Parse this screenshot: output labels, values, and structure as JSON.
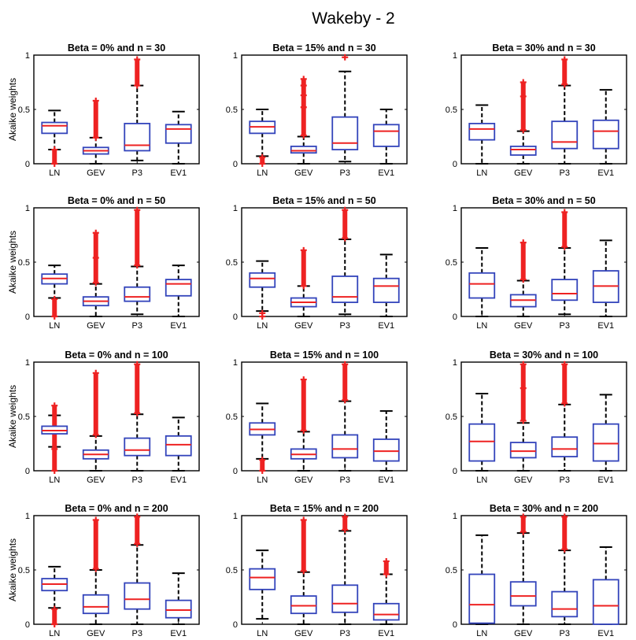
{
  "title": "Wakeby - 2",
  "ylabel": "Akaike weights",
  "colors": {
    "box": "#3344bb",
    "median": "#ee2222",
    "outlier": "#ee2222",
    "whisker": "#000000",
    "axis": "#000000"
  },
  "chart_data": {
    "type": "box",
    "title": "Wakeby - 2",
    "ylabel": "Akaike weights",
    "ylim": [
      0,
      1
    ],
    "yticks": [
      0,
      0.5,
      1
    ],
    "ytick_labels": [
      "0",
      "0.5",
      "1"
    ],
    "categories": [
      "LN",
      "GEV",
      "P3",
      "EV1"
    ],
    "panels": [
      {
        "title": "Beta = 0% and n = 30",
        "boxes": [
          {
            "q1": 0.28,
            "median": 0.35,
            "q3": 0.38,
            "wlo": 0.13,
            "whi": 0.49,
            "outliers": [
              0.0,
              0.13
            ]
          },
          {
            "q1": 0.09,
            "median": 0.12,
            "q3": 0.15,
            "wlo": 0.0,
            "whi": 0.24,
            "outliers": [
              0.24,
              0.58
            ]
          },
          {
            "q1": 0.12,
            "median": 0.17,
            "q3": 0.37,
            "wlo": 0.03,
            "whi": 0.72,
            "outliers": [
              0.72,
              0.96
            ]
          },
          {
            "q1": 0.19,
            "median": 0.32,
            "q3": 0.36,
            "wlo": 0.0,
            "whi": 0.48,
            "outliers": []
          }
        ]
      },
      {
        "title": "Beta = 15% and n = 30",
        "boxes": [
          {
            "q1": 0.28,
            "median": 0.34,
            "q3": 0.39,
            "wlo": 0.07,
            "whi": 0.5,
            "outliers": [
              0.0,
              0.06
            ]
          },
          {
            "q1": 0.1,
            "median": 0.12,
            "q3": 0.16,
            "wlo": 0.0,
            "whi": 0.25,
            "outliers": [
              0.26,
              0.52,
              0.63,
              0.72,
              0.78
            ]
          },
          {
            "q1": 0.13,
            "median": 0.19,
            "q3": 0.43,
            "wlo": 0.02,
            "whi": 0.85,
            "outliers": [
              0.98
            ]
          },
          {
            "q1": 0.16,
            "median": 0.3,
            "q3": 0.36,
            "wlo": 0.0,
            "whi": 0.5,
            "outliers": []
          }
        ]
      },
      {
        "title": "Beta = 30% and n = 30",
        "boxes": [
          {
            "q1": 0.22,
            "median": 0.32,
            "q3": 0.37,
            "wlo": 0.0,
            "whi": 0.54,
            "outliers": []
          },
          {
            "q1": 0.08,
            "median": 0.13,
            "q3": 0.16,
            "wlo": 0.0,
            "whi": 0.3,
            "outliers": [
              0.31,
              0.62,
              0.75
            ]
          },
          {
            "q1": 0.14,
            "median": 0.2,
            "q3": 0.39,
            "wlo": 0.0,
            "whi": 0.72,
            "outliers": [
              0.73,
              0.96
            ]
          },
          {
            "q1": 0.14,
            "median": 0.3,
            "q3": 0.4,
            "wlo": 0.0,
            "whi": 0.68,
            "outliers": []
          }
        ]
      },
      {
        "title": "Beta = 0% and n = 50",
        "boxes": [
          {
            "q1": 0.3,
            "median": 0.35,
            "q3": 0.39,
            "wlo": 0.17,
            "whi": 0.47,
            "outliers": [
              0.0,
              0.16
            ]
          },
          {
            "q1": 0.1,
            "median": 0.14,
            "q3": 0.18,
            "wlo": 0.0,
            "whi": 0.3,
            "outliers": [
              0.31,
              0.54,
              0.77
            ]
          },
          {
            "q1": 0.14,
            "median": 0.18,
            "q3": 0.27,
            "wlo": 0.02,
            "whi": 0.46,
            "outliers": [
              0.47,
              0.98
            ]
          },
          {
            "q1": 0.19,
            "median": 0.3,
            "q3": 0.34,
            "wlo": 0.0,
            "whi": 0.47,
            "outliers": []
          }
        ]
      },
      {
        "title": "Beta = 15% and n = 50",
        "boxes": [
          {
            "q1": 0.27,
            "median": 0.35,
            "q3": 0.4,
            "wlo": 0.05,
            "whi": 0.51,
            "outliers": [
              0.0,
              0.03
            ]
          },
          {
            "q1": 0.09,
            "median": 0.13,
            "q3": 0.17,
            "wlo": 0.0,
            "whi": 0.28,
            "outliers": [
              0.28,
              0.61
            ]
          },
          {
            "q1": 0.13,
            "median": 0.18,
            "q3": 0.37,
            "wlo": 0.02,
            "whi": 0.71,
            "outliers": [
              0.72,
              0.98
            ]
          },
          {
            "q1": 0.13,
            "median": 0.28,
            "q3": 0.35,
            "wlo": 0.0,
            "whi": 0.57,
            "outliers": []
          }
        ]
      },
      {
        "title": "Beta = 30% and n = 50",
        "boxes": [
          {
            "q1": 0.17,
            "median": 0.3,
            "q3": 0.4,
            "wlo": 0.0,
            "whi": 0.63,
            "outliers": []
          },
          {
            "q1": 0.09,
            "median": 0.15,
            "q3": 0.2,
            "wlo": 0.0,
            "whi": 0.33,
            "outliers": [
              0.34,
              0.68
            ]
          },
          {
            "q1": 0.15,
            "median": 0.21,
            "q3": 0.34,
            "wlo": 0.02,
            "whi": 0.63,
            "outliers": [
              0.64,
              0.96
            ]
          },
          {
            "q1": 0.13,
            "median": 0.28,
            "q3": 0.42,
            "wlo": 0.0,
            "whi": 0.7,
            "outliers": []
          }
        ]
      },
      {
        "title": "Beta = 0% and n = 100",
        "boxes": [
          {
            "q1": 0.34,
            "median": 0.37,
            "q3": 0.41,
            "wlo": 0.22,
            "whi": 0.51,
            "outliers": [
              0.0,
              0.2,
              0.6
            ]
          },
          {
            "q1": 0.11,
            "median": 0.15,
            "q3": 0.19,
            "wlo": 0.0,
            "whi": 0.32,
            "outliers": [
              0.33,
              0.9
            ]
          },
          {
            "q1": 0.14,
            "median": 0.19,
            "q3": 0.3,
            "wlo": 0.0,
            "whi": 0.52,
            "outliers": [
              0.53,
              0.98
            ]
          },
          {
            "q1": 0.14,
            "median": 0.24,
            "q3": 0.32,
            "wlo": 0.0,
            "whi": 0.49,
            "outliers": []
          }
        ]
      },
      {
        "title": "Beta = 15% and n = 100",
        "boxes": [
          {
            "q1": 0.33,
            "median": 0.38,
            "q3": 0.44,
            "wlo": 0.11,
            "whi": 0.62,
            "outliers": [
              0.0,
              0.1
            ]
          },
          {
            "q1": 0.11,
            "median": 0.15,
            "q3": 0.2,
            "wlo": 0.0,
            "whi": 0.36,
            "outliers": [
              0.37,
              0.84
            ]
          },
          {
            "q1": 0.12,
            "median": 0.2,
            "q3": 0.33,
            "wlo": 0.0,
            "whi": 0.64,
            "outliers": [
              0.65,
              0.98
            ]
          },
          {
            "q1": 0.09,
            "median": 0.18,
            "q3": 0.29,
            "wlo": 0.0,
            "whi": 0.55,
            "outliers": []
          }
        ]
      },
      {
        "title": "Beta = 30% and n = 100",
        "boxes": [
          {
            "q1": 0.09,
            "median": 0.27,
            "q3": 0.43,
            "wlo": 0.0,
            "whi": 0.71,
            "outliers": []
          },
          {
            "q1": 0.12,
            "median": 0.18,
            "q3": 0.26,
            "wlo": 0.0,
            "whi": 0.44,
            "outliers": [
              0.46,
              0.76,
              0.98
            ]
          },
          {
            "q1": 0.13,
            "median": 0.2,
            "q3": 0.31,
            "wlo": 0.0,
            "whi": 0.61,
            "outliers": [
              0.62,
              0.98
            ]
          },
          {
            "q1": 0.09,
            "median": 0.25,
            "q3": 0.43,
            "wlo": 0.0,
            "whi": 0.7,
            "outliers": []
          }
        ]
      },
      {
        "title": "Beta = 0% and n = 200",
        "boxes": [
          {
            "q1": 0.31,
            "median": 0.37,
            "q3": 0.42,
            "wlo": 0.15,
            "whi": 0.53,
            "outliers": [
              0.0,
              0.14
            ]
          },
          {
            "q1": 0.1,
            "median": 0.16,
            "q3": 0.27,
            "wlo": 0.0,
            "whi": 0.5,
            "outliers": [
              0.51,
              0.96
            ]
          },
          {
            "q1": 0.14,
            "median": 0.23,
            "q3": 0.38,
            "wlo": 0.0,
            "whi": 0.73,
            "outliers": [
              0.74,
              0.99
            ]
          },
          {
            "q1": 0.06,
            "median": 0.13,
            "q3": 0.22,
            "wlo": 0.0,
            "whi": 0.47,
            "outliers": []
          }
        ]
      },
      {
        "title": "Beta = 15% and n = 200",
        "boxes": [
          {
            "q1": 0.32,
            "median": 0.43,
            "q3": 0.51,
            "wlo": 0.05,
            "whi": 0.68,
            "outliers": []
          },
          {
            "q1": 0.1,
            "median": 0.17,
            "q3": 0.26,
            "wlo": 0.0,
            "whi": 0.48,
            "outliers": [
              0.49,
              0.96
            ]
          },
          {
            "q1": 0.11,
            "median": 0.19,
            "q3": 0.36,
            "wlo": 0.0,
            "whi": 0.86,
            "outliers": [
              0.87,
              0.99
            ]
          },
          {
            "q1": 0.04,
            "median": 0.09,
            "q3": 0.19,
            "wlo": 0.0,
            "whi": 0.46,
            "outliers": [
              0.46,
              0.58
            ]
          }
        ]
      },
      {
        "title": "Beta = 30% and n = 200",
        "boxes": [
          {
            "q1": 0.01,
            "median": 0.18,
            "q3": 0.46,
            "wlo": 0.0,
            "whi": 0.82,
            "outliers": []
          },
          {
            "q1": 0.17,
            "median": 0.26,
            "q3": 0.39,
            "wlo": 0.0,
            "whi": 0.84,
            "outliers": [
              0.85,
              0.99
            ]
          },
          {
            "q1": 0.07,
            "median": 0.14,
            "q3": 0.3,
            "wlo": 0.0,
            "whi": 0.68,
            "outliers": [
              0.69,
              0.99
            ]
          },
          {
            "q1": 0.0,
            "median": 0.17,
            "q3": 0.41,
            "wlo": 0.0,
            "whi": 0.71,
            "outliers": []
          }
        ]
      }
    ]
  }
}
